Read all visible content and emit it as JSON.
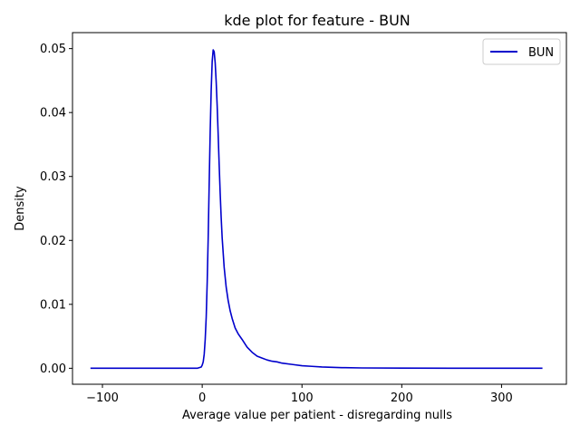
{
  "chart_data": {
    "type": "line",
    "title": "kde plot for feature -  BUN",
    "xlabel": "Average value per patient - disregarding nulls",
    "ylabel": "Density",
    "xlim": [
      -130,
      365
    ],
    "ylim": [
      -0.0025,
      0.0525
    ],
    "xticks": [
      -100,
      0,
      100,
      200,
      300
    ],
    "xtick_labels": [
      "−100",
      "0",
      "100",
      "200",
      "300"
    ],
    "yticks": [
      0.0,
      0.01,
      0.02,
      0.03,
      0.04,
      0.05
    ],
    "ytick_labels": [
      "0.00",
      "0.01",
      "0.02",
      "0.03",
      "0.04",
      "0.05"
    ],
    "grid": false,
    "legend_position": "top-right",
    "series": [
      {
        "name": "BUN",
        "color": "#0000cc",
        "x": [
          -112,
          -50,
          -5,
          -1,
          0,
          1,
          2,
          3,
          4,
          5,
          6,
          7,
          8,
          9,
          10,
          11,
          12,
          13,
          14,
          15,
          16,
          17,
          18,
          19,
          20,
          22,
          24,
          26,
          28,
          30,
          33,
          36,
          40,
          45,
          50,
          55,
          60,
          65,
          70,
          75,
          80,
          90,
          100,
          110,
          120,
          130,
          140,
          160,
          200,
          250,
          300,
          341
        ],
        "y": [
          0,
          0,
          0,
          0.0002,
          0.0005,
          0.001,
          0.0022,
          0.0045,
          0.008,
          0.0135,
          0.0205,
          0.029,
          0.037,
          0.0435,
          0.048,
          0.0498,
          0.0495,
          0.0478,
          0.0448,
          0.041,
          0.0365,
          0.0318,
          0.0274,
          0.0236,
          0.0204,
          0.0158,
          0.0127,
          0.0106,
          0.009,
          0.0078,
          0.0063,
          0.0054,
          0.0045,
          0.0033,
          0.0025,
          0.0019,
          0.0016,
          0.0013,
          0.0011,
          0.001,
          0.0008,
          0.0006,
          0.0004,
          0.0003,
          0.0002,
          0.00015,
          0.0001,
          5e-05,
          2e-05,
          1e-05,
          0,
          0
        ]
      }
    ]
  }
}
